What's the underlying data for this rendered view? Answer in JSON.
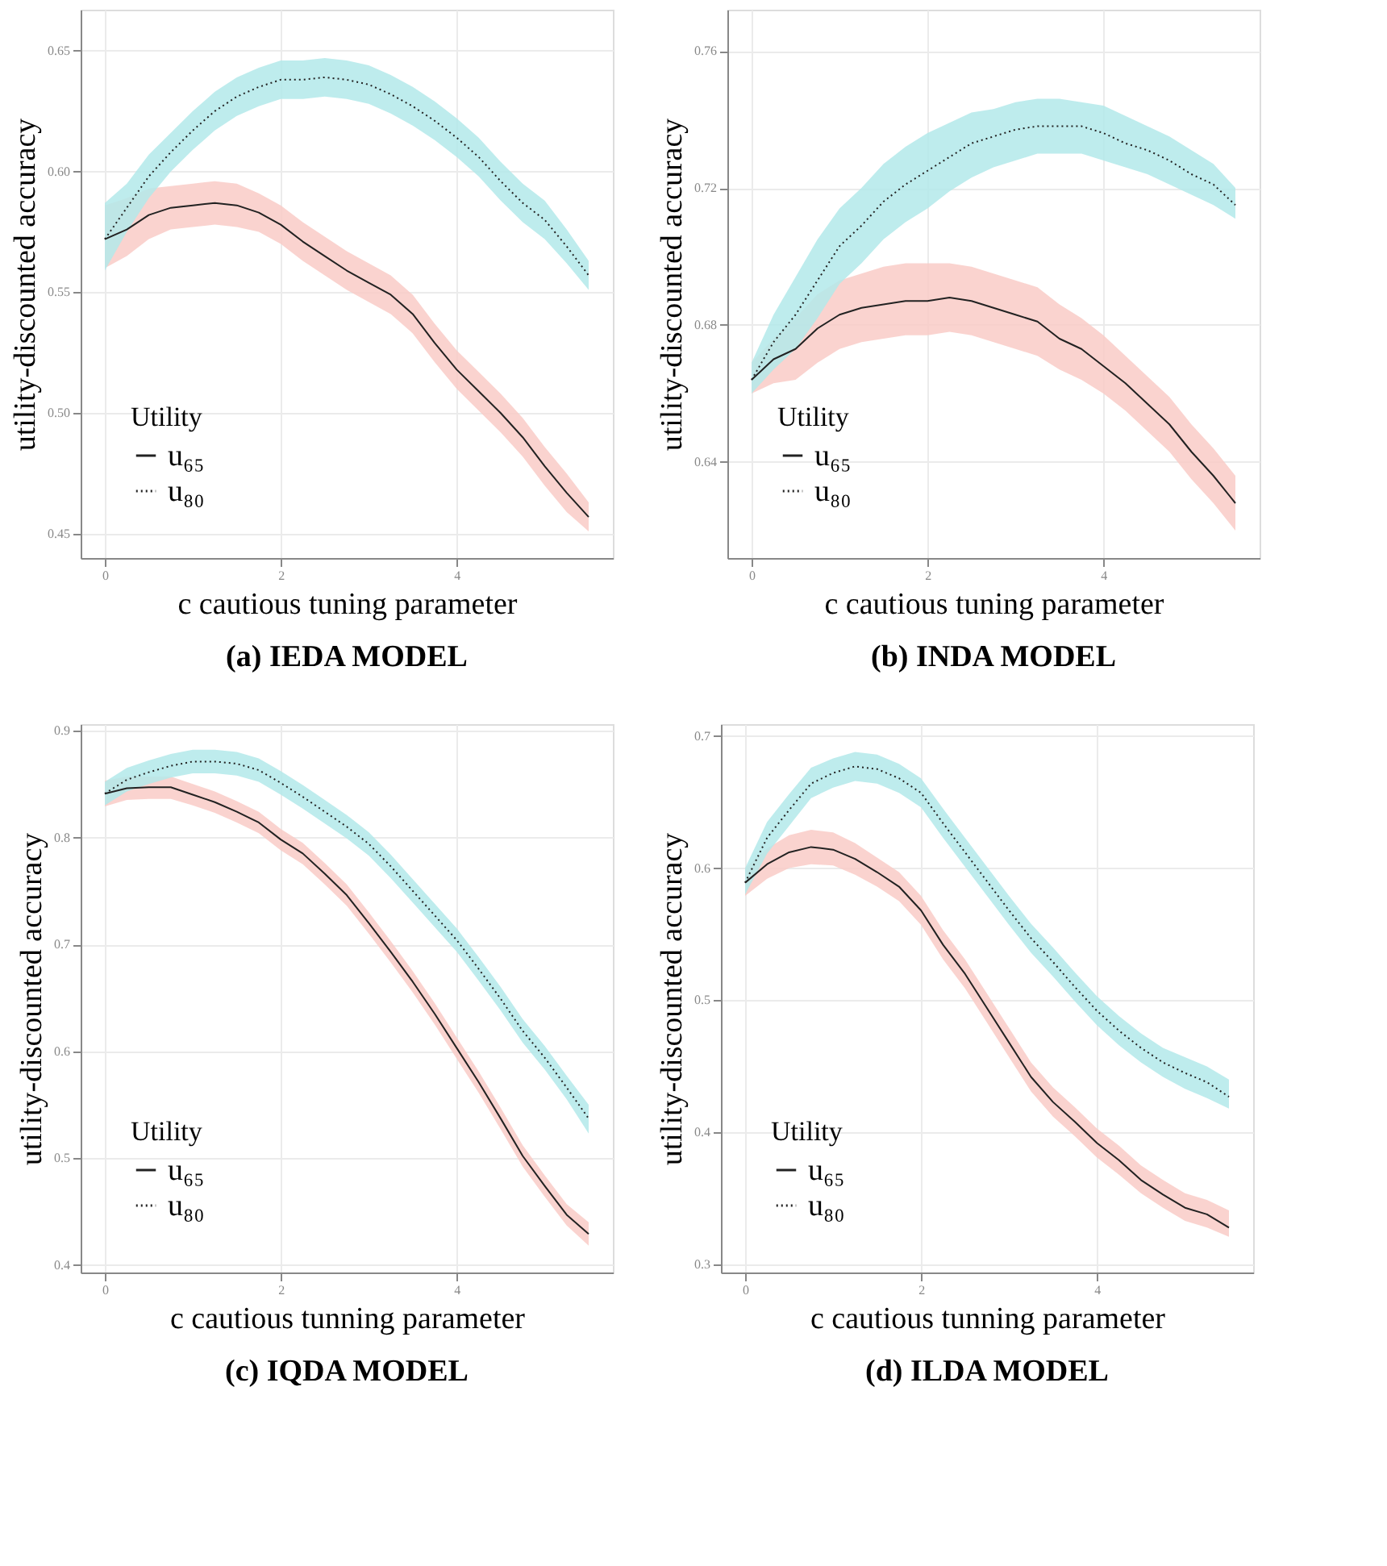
{
  "chart_data": [
    {
      "type": "line",
      "title": "(a) IEDA MODEL",
      "xlabel": "c cautious tuning parameter",
      "ylabel": "utility-discounted accuracy",
      "legend_title": "Utility",
      "legend": "bottom left",
      "grid": true,
      "x": [
        0,
        0.25,
        0.5,
        0.75,
        1,
        1.25,
        1.5,
        1.75,
        2,
        2.25,
        2.5,
        2.75,
        3,
        3.25,
        3.5,
        3.75,
        4,
        4.25,
        4.5,
        4.75,
        5,
        5.25,
        5.5
      ],
      "xlim": [
        -0.275,
        5.775
      ],
      "xticks": [
        0,
        2,
        4
      ],
      "ylim": [
        0.44,
        0.667
      ],
      "yticks": [
        0.45,
        {
          "value": 0.5,
          "label": "0.50"
        },
        0.55,
        {
          "value": 0.6,
          "label": "0.60"
        },
        0.65
      ],
      "series": [
        {
          "name": "u₆₅",
          "color": "#222222",
          "line_style": "solid",
          "values": [
            0.572,
            0.576,
            0.582,
            0.585,
            0.586,
            0.587,
            0.586,
            0.583,
            0.578,
            0.571,
            0.565,
            0.559,
            0.554,
            0.549,
            0.541,
            0.529,
            0.518,
            0.509,
            0.5,
            0.49,
            0.478,
            0.467,
            0.457
          ],
          "lower": [
            0.56,
            0.565,
            0.572,
            0.576,
            0.577,
            0.578,
            0.577,
            0.575,
            0.57,
            0.563,
            0.557,
            0.551,
            0.546,
            0.541,
            0.533,
            0.521,
            0.51,
            0.501,
            0.492,
            0.482,
            0.47,
            0.459,
            0.451
          ],
          "upper": [
            0.586,
            0.589,
            0.593,
            0.594,
            0.595,
            0.596,
            0.595,
            0.591,
            0.586,
            0.579,
            0.573,
            0.567,
            0.562,
            0.557,
            0.549,
            0.537,
            0.526,
            0.517,
            0.508,
            0.498,
            0.486,
            0.475,
            0.463
          ]
        },
        {
          "name": "u₈₀",
          "color": "#222222",
          "line_style": "dotted",
          "values": [
            0.572,
            0.585,
            0.598,
            0.608,
            0.617,
            0.625,
            0.631,
            0.635,
            0.638,
            0.638,
            0.639,
            0.638,
            0.636,
            0.632,
            0.627,
            0.621,
            0.614,
            0.606,
            0.596,
            0.587,
            0.58,
            0.569,
            0.557
          ],
          "lower": [
            0.559,
            0.575,
            0.589,
            0.6,
            0.609,
            0.617,
            0.623,
            0.627,
            0.63,
            0.63,
            0.631,
            0.63,
            0.628,
            0.624,
            0.619,
            0.613,
            0.606,
            0.598,
            0.588,
            0.579,
            0.572,
            0.562,
            0.551
          ],
          "upper": [
            0.587,
            0.595,
            0.607,
            0.616,
            0.625,
            0.633,
            0.639,
            0.643,
            0.646,
            0.646,
            0.647,
            0.646,
            0.644,
            0.64,
            0.635,
            0.629,
            0.622,
            0.614,
            0.604,
            0.595,
            0.588,
            0.576,
            0.563
          ]
        }
      ]
    },
    {
      "type": "line",
      "title": "(b) INDA MODEL",
      "xlabel": "c cautious tuning parameter",
      "ylabel": "utility-discounted accuracy",
      "legend_title": "Utility",
      "legend": "bottom left",
      "grid": true,
      "x": [
        0,
        0.25,
        0.5,
        0.75,
        1,
        1.25,
        1.5,
        1.75,
        2,
        2.25,
        2.5,
        2.75,
        3,
        3.25,
        3.5,
        3.75,
        4,
        4.25,
        4.5,
        4.75,
        5,
        5.25,
        5.5
      ],
      "xlim": [
        -0.275,
        5.775
      ],
      "xticks": [
        0,
        2,
        4
      ],
      "ylim": [
        0.612,
        0.772
      ],
      "yticks": [
        0.64,
        0.68,
        0.72,
        0.76
      ],
      "series": [
        {
          "name": "u₆₅",
          "color": "#222222",
          "line_style": "solid",
          "values": [
            0.664,
            0.67,
            0.673,
            0.679,
            0.683,
            0.685,
            0.686,
            0.687,
            0.687,
            0.688,
            0.687,
            0.685,
            0.683,
            0.681,
            0.676,
            0.673,
            0.668,
            0.663,
            0.657,
            0.651,
            0.643,
            0.636,
            0.628
          ],
          "lower": [
            0.66,
            0.663,
            0.664,
            0.669,
            0.673,
            0.675,
            0.676,
            0.677,
            0.677,
            0.678,
            0.677,
            0.675,
            0.673,
            0.671,
            0.667,
            0.664,
            0.66,
            0.655,
            0.649,
            0.643,
            0.635,
            0.628,
            0.62
          ],
          "upper": [
            0.669,
            0.676,
            0.682,
            0.689,
            0.693,
            0.695,
            0.697,
            0.698,
            0.698,
            0.698,
            0.697,
            0.695,
            0.693,
            0.691,
            0.686,
            0.682,
            0.677,
            0.671,
            0.665,
            0.659,
            0.651,
            0.644,
            0.636
          ]
        },
        {
          "name": "u₈₀",
          "color": "#222222",
          "line_style": "dotted",
          "values": [
            0.664,
            0.675,
            0.683,
            0.693,
            0.703,
            0.709,
            0.716,
            0.721,
            0.725,
            0.729,
            0.733,
            0.735,
            0.737,
            0.738,
            0.738,
            0.738,
            0.736,
            0.733,
            0.731,
            0.728,
            0.724,
            0.721,
            0.715
          ],
          "lower": [
            0.66,
            0.667,
            0.673,
            0.682,
            0.692,
            0.698,
            0.705,
            0.71,
            0.714,
            0.719,
            0.723,
            0.726,
            0.728,
            0.73,
            0.73,
            0.73,
            0.728,
            0.726,
            0.724,
            0.721,
            0.718,
            0.715,
            0.711
          ],
          "upper": [
            0.669,
            0.683,
            0.694,
            0.705,
            0.714,
            0.72,
            0.727,
            0.732,
            0.736,
            0.739,
            0.742,
            0.743,
            0.745,
            0.746,
            0.746,
            0.745,
            0.744,
            0.741,
            0.738,
            0.735,
            0.731,
            0.727,
            0.72
          ]
        }
      ]
    },
    {
      "type": "line",
      "title": "(c) IQDA MODEL",
      "xlabel": "c cautious tunning parameter",
      "ylabel": "utility-discounted accuracy",
      "legend_title": "Utility",
      "legend": "bottom left",
      "grid": true,
      "x": [
        0,
        0.25,
        0.5,
        0.75,
        1,
        1.25,
        1.5,
        1.75,
        2,
        2.25,
        2.5,
        2.75,
        3,
        3.25,
        3.5,
        3.75,
        4,
        4.25,
        4.5,
        4.75,
        5,
        5.25,
        5.5
      ],
      "xlim": [
        -0.275,
        5.775
      ],
      "xticks": [
        0,
        2,
        4
      ],
      "ylim": [
        0.393,
        0.906
      ],
      "yticks": [
        0.4,
        0.5,
        0.6,
        0.7,
        0.8,
        0.9
      ],
      "series": [
        {
          "name": "u₆₅",
          "color": "#222222",
          "line_style": "solid",
          "values": [
            0.841,
            0.846,
            0.847,
            0.847,
            0.84,
            0.833,
            0.824,
            0.814,
            0.798,
            0.785,
            0.766,
            0.746,
            0.72,
            0.693,
            0.665,
            0.635,
            0.603,
            0.571,
            0.537,
            0.502,
            0.474,
            0.447,
            0.429
          ],
          "lower": [
            0.829,
            0.835,
            0.836,
            0.836,
            0.83,
            0.823,
            0.814,
            0.804,
            0.788,
            0.775,
            0.756,
            0.736,
            0.71,
            0.683,
            0.655,
            0.625,
            0.593,
            0.561,
            0.527,
            0.492,
            0.464,
            0.437,
            0.418
          ],
          "upper": [
            0.853,
            0.857,
            0.857,
            0.857,
            0.85,
            0.843,
            0.834,
            0.824,
            0.808,
            0.795,
            0.776,
            0.756,
            0.73,
            0.703,
            0.675,
            0.645,
            0.613,
            0.581,
            0.547,
            0.512,
            0.484,
            0.457,
            0.44
          ]
        },
        {
          "name": "u₈₀",
          "color": "#222222",
          "line_style": "dotted",
          "values": [
            0.841,
            0.854,
            0.861,
            0.867,
            0.871,
            0.871,
            0.869,
            0.863,
            0.851,
            0.838,
            0.824,
            0.81,
            0.794,
            0.773,
            0.75,
            0.727,
            0.704,
            0.677,
            0.649,
            0.619,
            0.594,
            0.566,
            0.537
          ],
          "lower": [
            0.83,
            0.843,
            0.85,
            0.856,
            0.86,
            0.86,
            0.858,
            0.852,
            0.84,
            0.827,
            0.813,
            0.799,
            0.783,
            0.762,
            0.739,
            0.716,
            0.693,
            0.666,
            0.638,
            0.608,
            0.583,
            0.555,
            0.523
          ],
          "upper": [
            0.852,
            0.865,
            0.872,
            0.878,
            0.882,
            0.882,
            0.88,
            0.874,
            0.862,
            0.849,
            0.835,
            0.821,
            0.805,
            0.784,
            0.761,
            0.738,
            0.715,
            0.688,
            0.66,
            0.63,
            0.605,
            0.577,
            0.55
          ]
        }
      ]
    },
    {
      "type": "line",
      "title": "(d) ILDA MODEL",
      "xlabel": "c cautious tunning parameter",
      "ylabel": "utility-discounted accuracy",
      "legend_title": "Utility",
      "legend": "bottom left",
      "grid": true,
      "x": [
        0,
        0.25,
        0.5,
        0.75,
        1,
        1.25,
        1.5,
        1.75,
        2,
        2.25,
        2.5,
        2.75,
        3,
        3.25,
        3.5,
        3.75,
        4,
        4.25,
        4.5,
        4.75,
        5,
        5.25,
        5.5
      ],
      "xlim": [
        -0.275,
        5.775
      ],
      "xticks": [
        0,
        2,
        4
      ],
      "ylim": [
        0.294,
        0.709
      ],
      "yticks": [
        0.3,
        0.4,
        0.5,
        0.6,
        0.7
      ],
      "series": [
        {
          "name": "u₆₅",
          "color": "#222222",
          "line_style": "solid",
          "values": [
            0.589,
            0.603,
            0.612,
            0.616,
            0.614,
            0.607,
            0.597,
            0.586,
            0.568,
            0.542,
            0.52,
            0.494,
            0.468,
            0.442,
            0.423,
            0.408,
            0.392,
            0.379,
            0.364,
            0.353,
            0.343,
            0.338,
            0.328
          ],
          "lower": [
            0.579,
            0.592,
            0.6,
            0.603,
            0.602,
            0.595,
            0.586,
            0.575,
            0.557,
            0.531,
            0.509,
            0.483,
            0.457,
            0.431,
            0.412,
            0.397,
            0.381,
            0.368,
            0.354,
            0.343,
            0.333,
            0.328,
            0.321
          ],
          "upper": [
            0.6,
            0.615,
            0.625,
            0.629,
            0.627,
            0.619,
            0.608,
            0.597,
            0.579,
            0.553,
            0.531,
            0.505,
            0.479,
            0.453,
            0.434,
            0.419,
            0.403,
            0.39,
            0.375,
            0.364,
            0.354,
            0.349,
            0.341
          ]
        },
        {
          "name": "u₈₀",
          "color": "#222222",
          "line_style": "dotted",
          "values": [
            0.589,
            0.623,
            0.644,
            0.664,
            0.672,
            0.677,
            0.675,
            0.668,
            0.657,
            0.634,
            0.612,
            0.59,
            0.568,
            0.547,
            0.529,
            0.51,
            0.492,
            0.477,
            0.464,
            0.453,
            0.445,
            0.438,
            0.427
          ],
          "lower": [
            0.58,
            0.611,
            0.632,
            0.653,
            0.661,
            0.666,
            0.664,
            0.657,
            0.646,
            0.623,
            0.601,
            0.579,
            0.557,
            0.536,
            0.518,
            0.499,
            0.481,
            0.466,
            0.453,
            0.442,
            0.433,
            0.426,
            0.418
          ],
          "upper": [
            0.6,
            0.635,
            0.656,
            0.676,
            0.683,
            0.688,
            0.686,
            0.679,
            0.668,
            0.645,
            0.623,
            0.601,
            0.579,
            0.558,
            0.54,
            0.521,
            0.503,
            0.488,
            0.475,
            0.464,
            0.457,
            0.45,
            0.44
          ]
        }
      ]
    }
  ]
}
